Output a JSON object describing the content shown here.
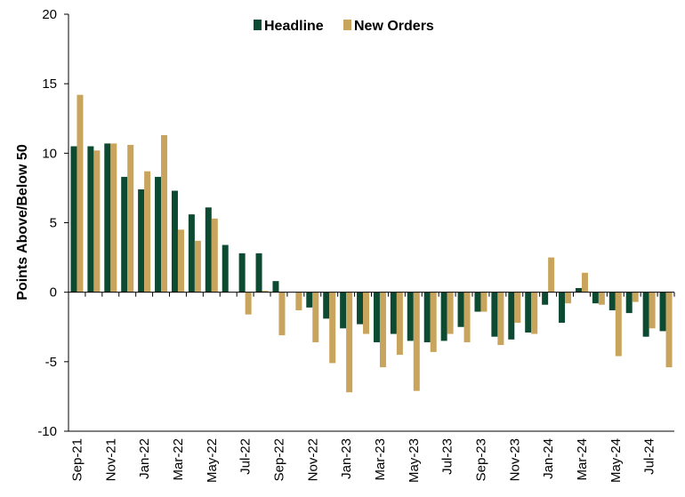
{
  "colors": {
    "headline": "#0d4a32",
    "new_orders": "#c9a45c",
    "axis": "#000000"
  },
  "chart_data": {
    "type": "bar",
    "title": "",
    "xlabel": "",
    "ylabel": "Points Above/Below 50",
    "ylim": [
      -10,
      20
    ],
    "yticks": [
      20,
      15,
      10,
      5,
      0,
      -5,
      -10
    ],
    "legend": "top-center",
    "grid": false,
    "categories": [
      "Sep-21",
      "Oct-21",
      "Nov-21",
      "Dec-21",
      "Jan-22",
      "Feb-22",
      "Mar-22",
      "Apr-22",
      "May-22",
      "Jun-22",
      "Jul-22",
      "Aug-22",
      "Sep-22",
      "Oct-22",
      "Nov-22",
      "Dec-22",
      "Jan-23",
      "Feb-23",
      "Mar-23",
      "Apr-23",
      "May-23",
      "Jun-23",
      "Jul-23",
      "Aug-23",
      "Sep-23",
      "Oct-23",
      "Nov-23",
      "Dec-23",
      "Jan-24",
      "Feb-24",
      "Mar-24",
      "Apr-24",
      "May-24",
      "Jun-24",
      "Jul-24",
      "Aug-24"
    ],
    "tick_labels": [
      "Sep-21",
      "Nov-21",
      "Jan-22",
      "Mar-22",
      "May-22",
      "Jul-22",
      "Sep-22",
      "Nov-22",
      "Jan-23",
      "Mar-23",
      "May-23",
      "Jul-23",
      "Sep-23",
      "Nov-23",
      "Jan-24",
      "Mar-24",
      "May-24",
      "Jul-24"
    ],
    "series": [
      {
        "name": "Headline",
        "values": [
          10.5,
          10.5,
          10.7,
          8.3,
          7.4,
          8.3,
          7.3,
          5.6,
          6.1,
          3.4,
          2.8,
          2.8,
          0.8,
          0,
          -1.1,
          -1.9,
          -2.6,
          -2.3,
          -3.6,
          -3.0,
          -3.5,
          -3.6,
          -3.5,
          -2.5,
          -1.4,
          -3.2,
          -3.4,
          -2.9,
          -0.9,
          -2.2,
          0.3,
          -0.8,
          -1.3,
          -1.5,
          -3.2,
          -2.8
        ]
      },
      {
        "name": "New Orders",
        "values": [
          14.2,
          10.2,
          10.7,
          10.6,
          8.7,
          11.3,
          4.5,
          3.7,
          5.3,
          0,
          -1.6,
          0.1,
          -3.1,
          -1.3,
          -3.6,
          -5.1,
          -7.2,
          -3.0,
          -5.4,
          -4.5,
          -7.1,
          -4.3,
          -3.0,
          -3.6,
          -1.4,
          -3.8,
          -2.2,
          -3.0,
          2.5,
          -0.8,
          1.4,
          -0.9,
          -4.6,
          -0.7,
          -2.6,
          -5.4
        ]
      }
    ]
  }
}
